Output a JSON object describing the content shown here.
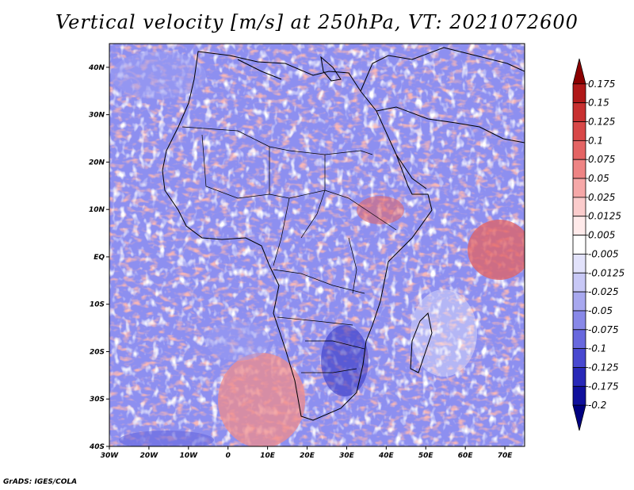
{
  "title": "Vertical velocity [m/s] at 250hPa, VT: 2021072600",
  "credit": "GrADS: IGES/COLA",
  "axes": {
    "lat_labels": [
      "40N",
      "30N",
      "20N",
      "10N",
      "EQ",
      "10S",
      "20S",
      "30S",
      "40S"
    ],
    "lon_labels": [
      "30W",
      "20W",
      "10W",
      "0",
      "10E",
      "20E",
      "30E",
      "40E",
      "50E",
      "60E",
      "70E"
    ],
    "lat_range": [
      -40,
      45
    ],
    "lon_range": [
      -30,
      75
    ]
  },
  "colorbar": {
    "levels": [
      "0.175",
      "0.15",
      "0.125",
      "0.1",
      "0.075",
      "0.05",
      "0.025",
      "0.0125",
      "0.005",
      "-0.005",
      "-0.0125",
      "-0.025",
      "-0.05",
      "-0.075",
      "-0.1",
      "-0.125",
      "-0.175",
      "-0.2"
    ],
    "colors": [
      "#8b0000",
      "#b01818",
      "#c83030",
      "#d84848",
      "#e46464",
      "#ee8484",
      "#f6a8a8",
      "#fbcccc",
      "#ffeaea",
      "#ffffff",
      "#e2e2fb",
      "#c8c8f6",
      "#a8a8ef",
      "#8888e8",
      "#6868de",
      "#4848d0",
      "#2828b8",
      "#10109c",
      "#000080"
    ]
  }
}
